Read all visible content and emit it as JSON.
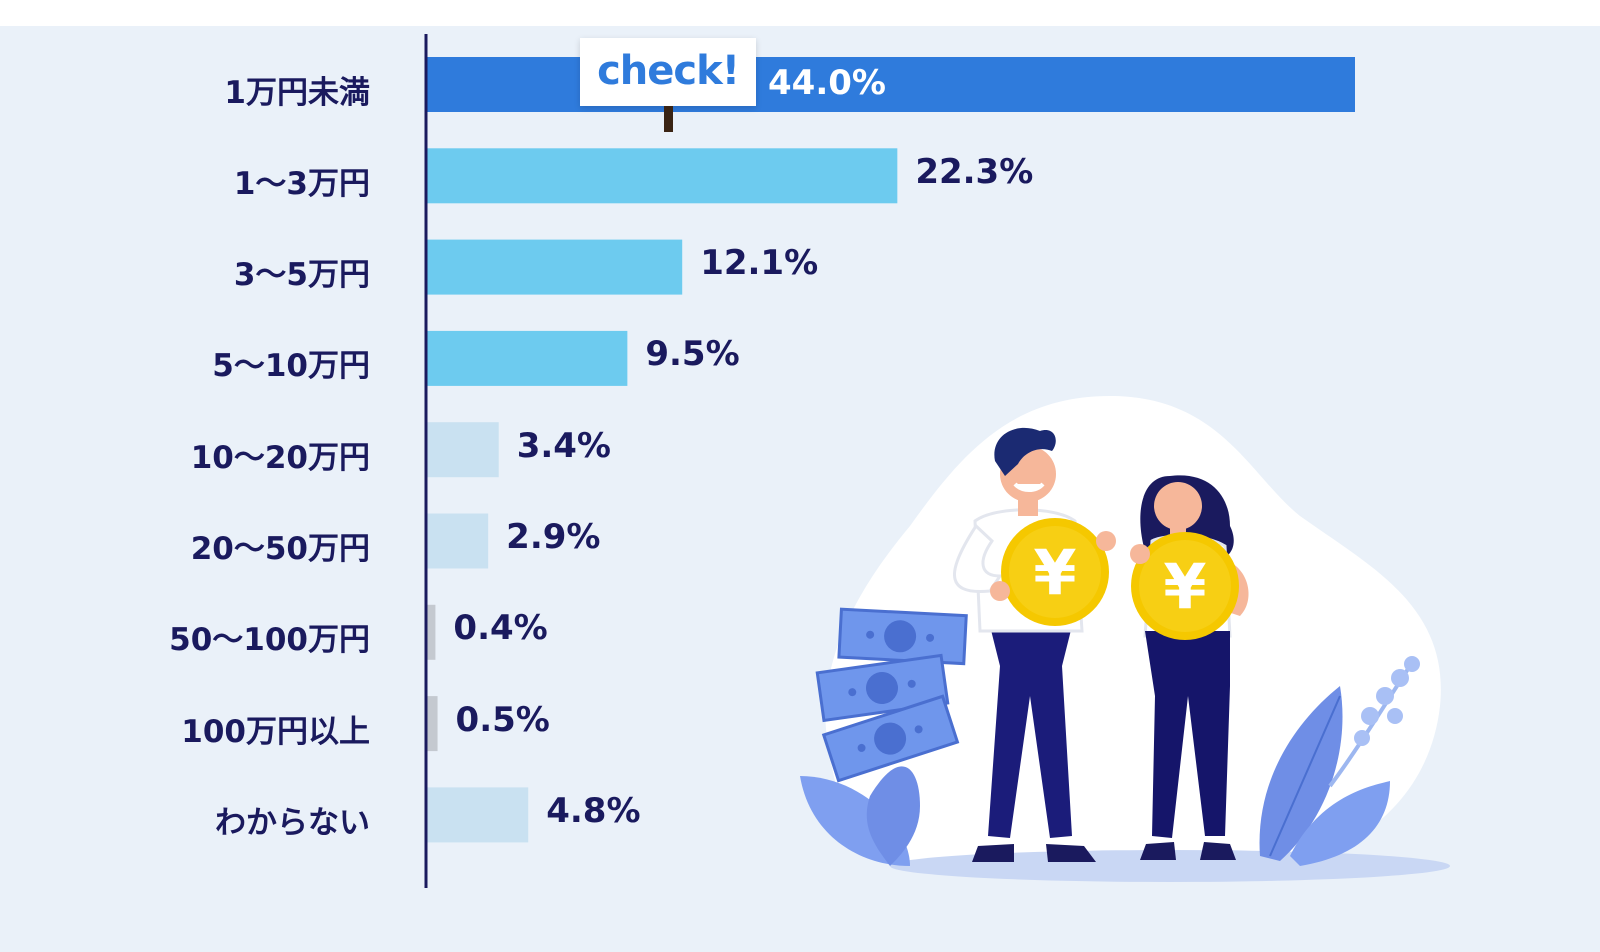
{
  "badge": {
    "text": "check!"
  },
  "chart_data": {
    "type": "bar",
    "orientation": "horizontal",
    "categories": [
      "1万円未満",
      "1～3万円",
      "3～5万円",
      "5～10万円",
      "10～20万円",
      "20～50万円",
      "50～100万円",
      "100万円以上",
      "わからない"
    ],
    "values": [
      44.0,
      22.3,
      12.1,
      9.5,
      3.4,
      2.9,
      0.4,
      0.5,
      4.8
    ],
    "value_labels": [
      "44.0%",
      "22.3%",
      "12.1%",
      "9.5%",
      "3.4%",
      "2.9%",
      "0.4%",
      "0.5%",
      "4.8%"
    ],
    "bar_colors": [
      "#2f7bdc",
      "#6dcbef",
      "#6dcbef",
      "#6dcbef",
      "#c9e1f1",
      "#c9e1f1",
      "#c4c9d0",
      "#c4c9d0",
      "#c9e1f1"
    ],
    "highlighted_category": "1万円未満",
    "xlim": [
      0,
      44.0
    ],
    "grid": false,
    "title": "",
    "xlabel": "",
    "ylabel": ""
  },
  "illustration": {
    "coin_symbol_left": "¥",
    "coin_symbol_right": "¥",
    "colors": {
      "coin": "#f5c800",
      "accent": "#6f96ec",
      "navy": "#1a1a5e"
    }
  }
}
